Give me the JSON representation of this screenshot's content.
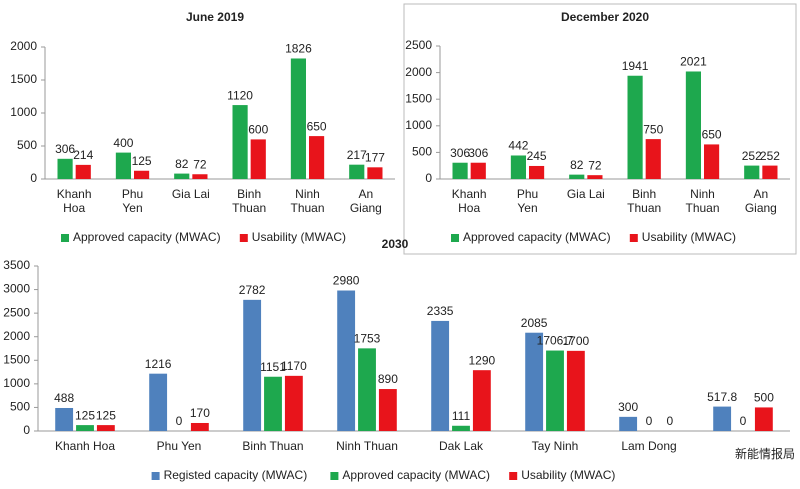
{
  "chart_data": [
    {
      "type": "bar",
      "title": "June 2019",
      "categories": [
        "Khanh Hoa",
        "Phu Yen",
        "Gia Lai",
        "Binh Thuan",
        "Ninh Thuan",
        "An Giang"
      ],
      "series": [
        {
          "name": "Approved capacity (MWAC)",
          "color": "#1ea84e",
          "values": [
            306,
            400,
            82,
            1120,
            1826,
            217
          ]
        },
        {
          "name": "Usability (MWAC)",
          "color": "#e8141b",
          "values": [
            214,
            125,
            72,
            600,
            650,
            177
          ]
        }
      ],
      "ylim": [
        0,
        2000
      ],
      "yticks": [
        0,
        500,
        1000,
        1500,
        2000
      ],
      "grid": false
    },
    {
      "type": "bar",
      "title": "December 2020",
      "categories": [
        "Khanh Hoa",
        "Phu Yen",
        "Gia Lai",
        "Binh Thuan",
        "Ninh Thuan",
        "An Giang"
      ],
      "series": [
        {
          "name": "Approved capacity (MWAC)",
          "color": "#1ea84e",
          "values": [
            306,
            442,
            82,
            1941,
            2021,
            252
          ]
        },
        {
          "name": "Usability (MWAC)",
          "color": "#e8141b",
          "values": [
            306,
            245,
            72,
            750,
            650,
            252
          ]
        }
      ],
      "ylim": [
        0,
        2500
      ],
      "yticks": [
        0,
        500,
        1000,
        1500,
        2000,
        2500
      ],
      "grid": false
    },
    {
      "type": "bar",
      "title": "2030",
      "categories": [
        "Khanh Hoa",
        "Phu Yen",
        "Binh Thuan",
        "Ninh Thuan",
        "Dak Lak",
        "Tay Ninh",
        "Lam Dong",
        null
      ],
      "series": [
        {
          "name": "Registed capacity (MWAC)",
          "color": "#4f81bd",
          "values": [
            488,
            1216,
            2782,
            2980,
            2335,
            2085,
            300,
            517.8
          ]
        },
        {
          "name": "Approved capacity (MWAC)",
          "color": "#1ea84e",
          "values": [
            125,
            0,
            1151,
            1753,
            111,
            1706.7,
            0,
            0
          ]
        },
        {
          "name": "Usability (MWAC)",
          "color": "#e8141b",
          "values": [
            125,
            170,
            1170,
            890,
            1290,
            1700,
            0,
            500
          ]
        }
      ],
      "ylim": [
        0,
        3500
      ],
      "yticks": [
        0,
        500,
        1000,
        1500,
        2000,
        2500,
        3000,
        3500
      ],
      "grid": false,
      "watermark": "新能情报局"
    }
  ]
}
